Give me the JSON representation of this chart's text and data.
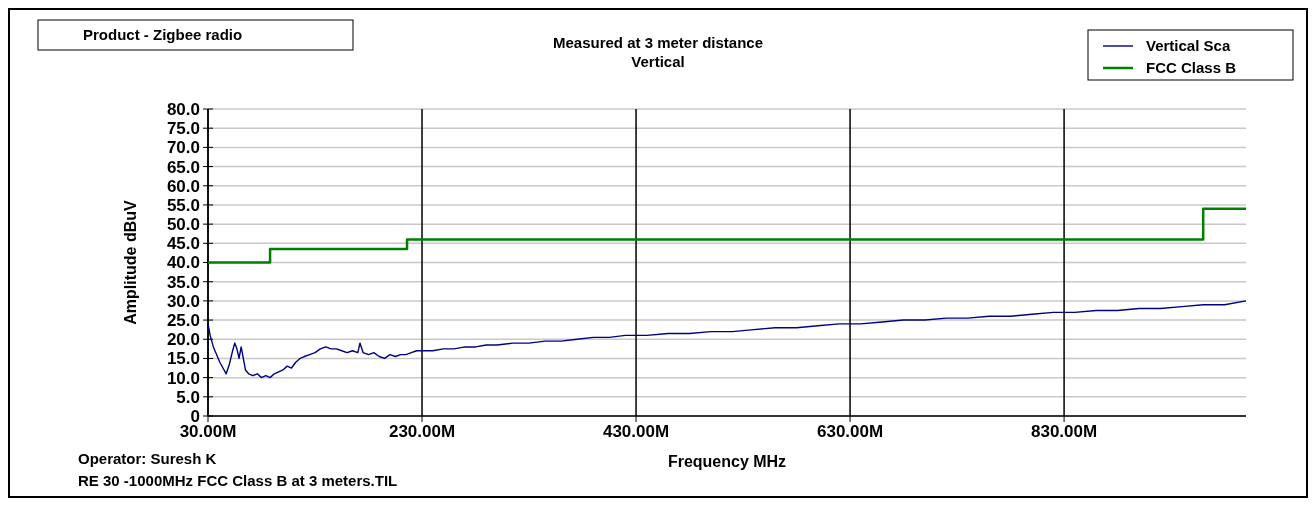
{
  "chart_data": {
    "type": "line",
    "title": "Measured at 3 meter distance",
    "subtitle": "Vertical",
    "xlabel": "Frequency MHz",
    "ylabel": "Amplitude dBuV",
    "annotations": [
      "Product - Zigbee radio",
      "Operator: Suresh K",
      "RE 30 -1000MHz  FCC  Class B  at 3 meters.TIL"
    ],
    "xlim": [
      30,
      1000
    ],
    "ylim": [
      0,
      80
    ],
    "xticks": [
      {
        "value": 30,
        "label": "30.00M"
      },
      {
        "value": 230,
        "label": "230.00M"
      },
      {
        "value": 430,
        "label": "430.00M"
      },
      {
        "value": 630,
        "label": "630.00M"
      },
      {
        "value": 830,
        "label": "830.00M"
      }
    ],
    "yticks": [
      0,
      {
        "value": 5,
        "label": "5.0"
      },
      {
        "value": 10,
        "label": "10.0"
      },
      {
        "value": 15,
        "label": "15.0"
      },
      {
        "value": 20,
        "label": "20.0"
      },
      {
        "value": 25,
        "label": "25.0"
      },
      {
        "value": 30,
        "label": "30.0"
      },
      {
        "value": 35,
        "label": "35.0"
      },
      {
        "value": 40,
        "label": "40.0"
      },
      {
        "value": 45,
        "label": "45.0"
      },
      {
        "value": 50,
        "label": "50.0"
      },
      {
        "value": 55,
        "label": "55.0"
      },
      {
        "value": 60,
        "label": "60.0"
      },
      {
        "value": 65,
        "label": "65.0"
      },
      {
        "value": 70,
        "label": "70.0"
      },
      {
        "value": 75,
        "label": "75.0"
      },
      {
        "value": 80,
        "label": "80.0"
      }
    ],
    "grid": true,
    "legend": "top right",
    "marker": "none",
    "line_style": "solid",
    "series": [
      {
        "name": "Vertical Sca",
        "color": "#000080",
        "type": "line",
        "x": [
          30,
          32,
          35,
          38,
          41,
          44,
          47,
          50,
          53,
          55,
          57,
          59,
          61,
          63,
          65,
          68,
          72,
          76,
          80,
          84,
          88,
          92,
          96,
          100,
          104,
          108,
          112,
          116,
          120,
          125,
          130,
          135,
          140,
          145,
          150,
          155,
          160,
          165,
          170,
          172,
          175,
          180,
          185,
          190,
          195,
          200,
          205,
          210,
          215,
          220,
          225,
          230,
          240,
          250,
          260,
          270,
          280,
          290,
          300,
          315,
          330,
          345,
          360,
          375,
          390,
          405,
          420,
          440,
          460,
          480,
          500,
          520,
          540,
          560,
          580,
          600,
          620,
          640,
          660,
          680,
          700,
          720,
          740,
          760,
          780,
          800,
          820,
          840,
          860,
          880,
          900,
          920,
          940,
          960,
          980,
          1000
        ],
        "values": [
          24,
          21,
          18,
          16,
          14,
          12.5,
          11,
          13.5,
          17,
          19,
          17.5,
          15,
          18,
          15,
          12,
          11,
          10.5,
          11,
          10,
          10.5,
          10,
          11,
          11.5,
          12,
          13,
          12.5,
          14,
          15,
          15.5,
          16,
          16.5,
          17.5,
          18,
          17.5,
          17.5,
          17,
          16.5,
          17,
          16.5,
          19,
          16.5,
          16,
          16.5,
          15.5,
          15,
          16,
          15.5,
          16,
          16,
          16.5,
          17,
          17,
          17,
          17.5,
          17.5,
          18,
          18,
          18.5,
          18.5,
          19,
          19,
          19.5,
          19.5,
          20,
          20.5,
          20.5,
          21,
          21,
          21.5,
          21.5,
          22,
          22,
          22.5,
          23,
          23,
          23.5,
          24,
          24,
          24.5,
          25,
          25,
          25.5,
          25.5,
          26,
          26,
          26.5,
          27,
          27,
          27.5,
          27.5,
          28,
          28,
          28.5,
          29,
          29,
          30
        ]
      },
      {
        "name": "FCC Class B",
        "color": "#008000",
        "type": "step",
        "x": [
          30,
          88,
          216,
          960,
          1000
        ],
        "values": [
          40,
          43.5,
          46,
          54,
          54
        ]
      }
    ]
  }
}
